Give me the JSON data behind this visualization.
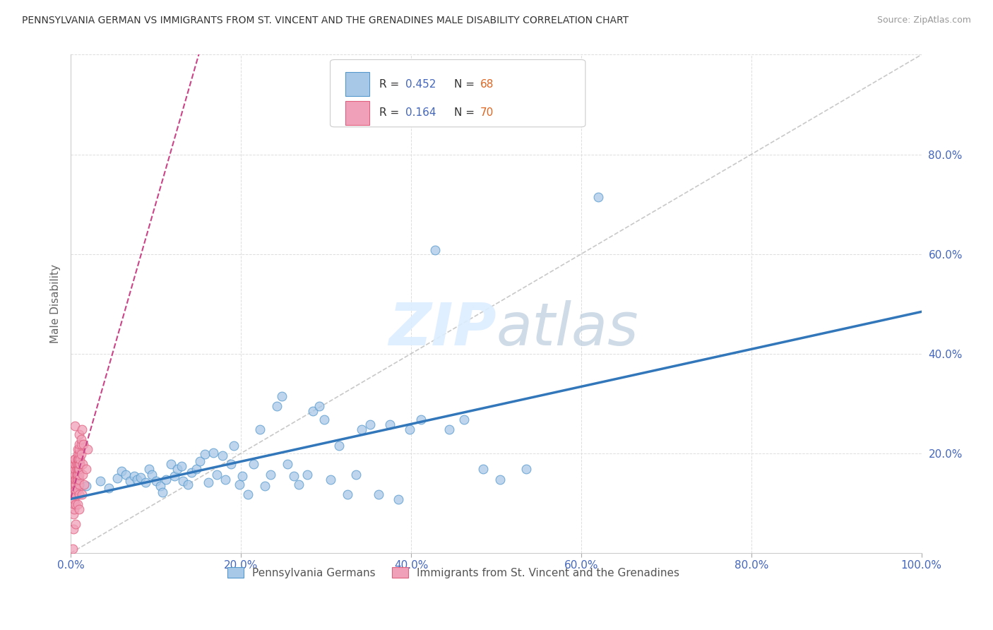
{
  "title": "PENNSYLVANIA GERMAN VS IMMIGRANTS FROM ST. VINCENT AND THE GRENADINES MALE DISABILITY CORRELATION CHART",
  "source": "Source: ZipAtlas.com",
  "ylabel": "Male Disability",
  "legend_r1": "0.452",
  "legend_n1": "68",
  "legend_r2": "0.164",
  "legend_n2": "70",
  "legend_label1": "Pennsylvania Germans",
  "legend_label2": "Immigrants from St. Vincent and the Grenadines",
  "color_blue_fill": "#a8c8e8",
  "color_blue_edge": "#5599cc",
  "color_pink_fill": "#f0a0b8",
  "color_pink_edge": "#e06080",
  "color_line_blue": "#3377bb",
  "color_line_pink": "#cc4488",
  "color_diagonal": "#bbbbbb",
  "color_grid": "#dddddd",
  "color_tick_label": "#4466bb",
  "color_text_r": "#4466bb",
  "color_text_n": "#dd6622",
  "xlim": [
    0.0,
    1.0
  ],
  "ylim": [
    0.0,
    1.0
  ],
  "xticks": [
    0.0,
    0.2,
    0.4,
    0.6,
    0.8,
    1.0
  ],
  "yticks": [
    0.0,
    0.2,
    0.4,
    0.6,
    0.8,
    1.0
  ],
  "xticklabels": [
    "0.0%",
    "20.0%",
    "40.0%",
    "60.0%",
    "80.0%",
    "100.0%"
  ],
  "yticklabels": [
    "",
    "20.0%",
    "40.0%",
    "60.0%",
    "80.0%",
    ""
  ],
  "blue_x": [
    0.018,
    0.035,
    0.045,
    0.055,
    0.06,
    0.065,
    0.07,
    0.075,
    0.078,
    0.082,
    0.088,
    0.092,
    0.095,
    0.1,
    0.105,
    0.108,
    0.112,
    0.118,
    0.122,
    0.125,
    0.13,
    0.132,
    0.138,
    0.142,
    0.148,
    0.152,
    0.158,
    0.162,
    0.168,
    0.172,
    0.178,
    0.182,
    0.188,
    0.192,
    0.198,
    0.202,
    0.208,
    0.215,
    0.222,
    0.228,
    0.235,
    0.242,
    0.248,
    0.255,
    0.262,
    0.268,
    0.278,
    0.285,
    0.292,
    0.298,
    0.305,
    0.315,
    0.325,
    0.335,
    0.342,
    0.352,
    0.362,
    0.375,
    0.385,
    0.398,
    0.412,
    0.428,
    0.445,
    0.462,
    0.485,
    0.505,
    0.535,
    0.62
  ],
  "blue_y": [
    0.135,
    0.145,
    0.13,
    0.15,
    0.165,
    0.158,
    0.145,
    0.155,
    0.148,
    0.152,
    0.142,
    0.168,
    0.158,
    0.145,
    0.135,
    0.122,
    0.148,
    0.178,
    0.155,
    0.168,
    0.175,
    0.145,
    0.138,
    0.162,
    0.168,
    0.185,
    0.198,
    0.142,
    0.202,
    0.158,
    0.195,
    0.148,
    0.178,
    0.215,
    0.138,
    0.155,
    0.118,
    0.178,
    0.248,
    0.135,
    0.158,
    0.295,
    0.315,
    0.178,
    0.155,
    0.138,
    0.158,
    0.285,
    0.295,
    0.268,
    0.148,
    0.215,
    0.118,
    0.158,
    0.248,
    0.258,
    0.118,
    0.258,
    0.108,
    0.248,
    0.268,
    0.608,
    0.248,
    0.268,
    0.168,
    0.148,
    0.168,
    0.715
  ],
  "pink_x": [
    0.002,
    0.003,
    0.003,
    0.004,
    0.004,
    0.004,
    0.004,
    0.005,
    0.005,
    0.005,
    0.005,
    0.005,
    0.005,
    0.005,
    0.005,
    0.005,
    0.005,
    0.005,
    0.005,
    0.005,
    0.006,
    0.006,
    0.006,
    0.006,
    0.006,
    0.006,
    0.007,
    0.007,
    0.007,
    0.007,
    0.007,
    0.007,
    0.007,
    0.008,
    0.008,
    0.008,
    0.008,
    0.008,
    0.008,
    0.008,
    0.009,
    0.009,
    0.009,
    0.009,
    0.009,
    0.009,
    0.01,
    0.01,
    0.01,
    0.01,
    0.01,
    0.01,
    0.01,
    0.01,
    0.01,
    0.01,
    0.011,
    0.011,
    0.011,
    0.012,
    0.012,
    0.012,
    0.013,
    0.013,
    0.014,
    0.014,
    0.015,
    0.016,
    0.018,
    0.02
  ],
  "pink_y": [
    0.008,
    0.048,
    0.078,
    0.088,
    0.098,
    0.108,
    0.118,
    0.128,
    0.138,
    0.148,
    0.148,
    0.158,
    0.158,
    0.168,
    0.168,
    0.178,
    0.178,
    0.188,
    0.188,
    0.255,
    0.058,
    0.098,
    0.118,
    0.128,
    0.138,
    0.148,
    0.148,
    0.158,
    0.158,
    0.168,
    0.168,
    0.178,
    0.178,
    0.188,
    0.198,
    0.208,
    0.098,
    0.128,
    0.148,
    0.158,
    0.168,
    0.168,
    0.178,
    0.178,
    0.188,
    0.188,
    0.198,
    0.208,
    0.218,
    0.238,
    0.088,
    0.118,
    0.138,
    0.148,
    0.158,
    0.168,
    0.178,
    0.178,
    0.188,
    0.198,
    0.218,
    0.228,
    0.248,
    0.118,
    0.158,
    0.178,
    0.218,
    0.138,
    0.168,
    0.208
  ]
}
